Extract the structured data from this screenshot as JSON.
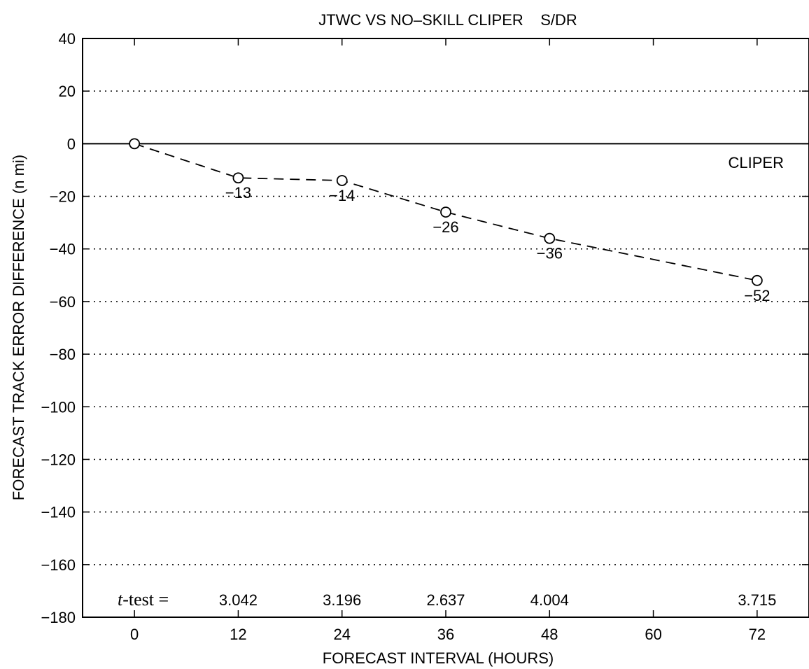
{
  "chart_data": {
    "type": "line",
    "title": "JTWC VS NO–SKILL CLIPER    S/DR",
    "xlabel": "FORECAST INTERVAL (HOURS)",
    "ylabel": "FORECAST TRACK ERROR DIFFERENCE (n mi)",
    "xlim": [
      -6,
      78
    ],
    "ylim": [
      -180,
      40
    ],
    "xticks": [
      0,
      12,
      24,
      36,
      48,
      60,
      72
    ],
    "xtick_labels": [
      "0",
      "12",
      "24",
      "36",
      "48",
      "60",
      "72"
    ],
    "yticks": [
      40,
      20,
      0,
      -20,
      -40,
      -60,
      -80,
      -100,
      -120,
      -140,
      -160,
      -180
    ],
    "ytick_labels": [
      "40",
      "20",
      "0",
      "−20",
      "−40",
      "−60",
      "−80",
      "−100",
      "−120",
      "−140",
      "−160",
      "−180"
    ],
    "grid": "horizontal dotted",
    "series": [
      {
        "x": [
          0,
          12,
          24,
          36,
          48,
          72
        ],
        "y": [
          0,
          -13,
          -14,
          -26,
          -36,
          -52
        ],
        "labels": [
          "",
          "−13",
          "−14",
          "−26",
          "−36",
          "−52"
        ],
        "line_style": "dashed",
        "marker": "open circle"
      }
    ],
    "reference_line": {
      "y": 0,
      "label": "CLIPER"
    },
    "ttest": {
      "label": "t-test =",
      "x": [
        12,
        24,
        36,
        48,
        72
      ],
      "values": [
        "3.042",
        "3.196",
        "2.637",
        "4.004",
        "3.715"
      ]
    }
  }
}
